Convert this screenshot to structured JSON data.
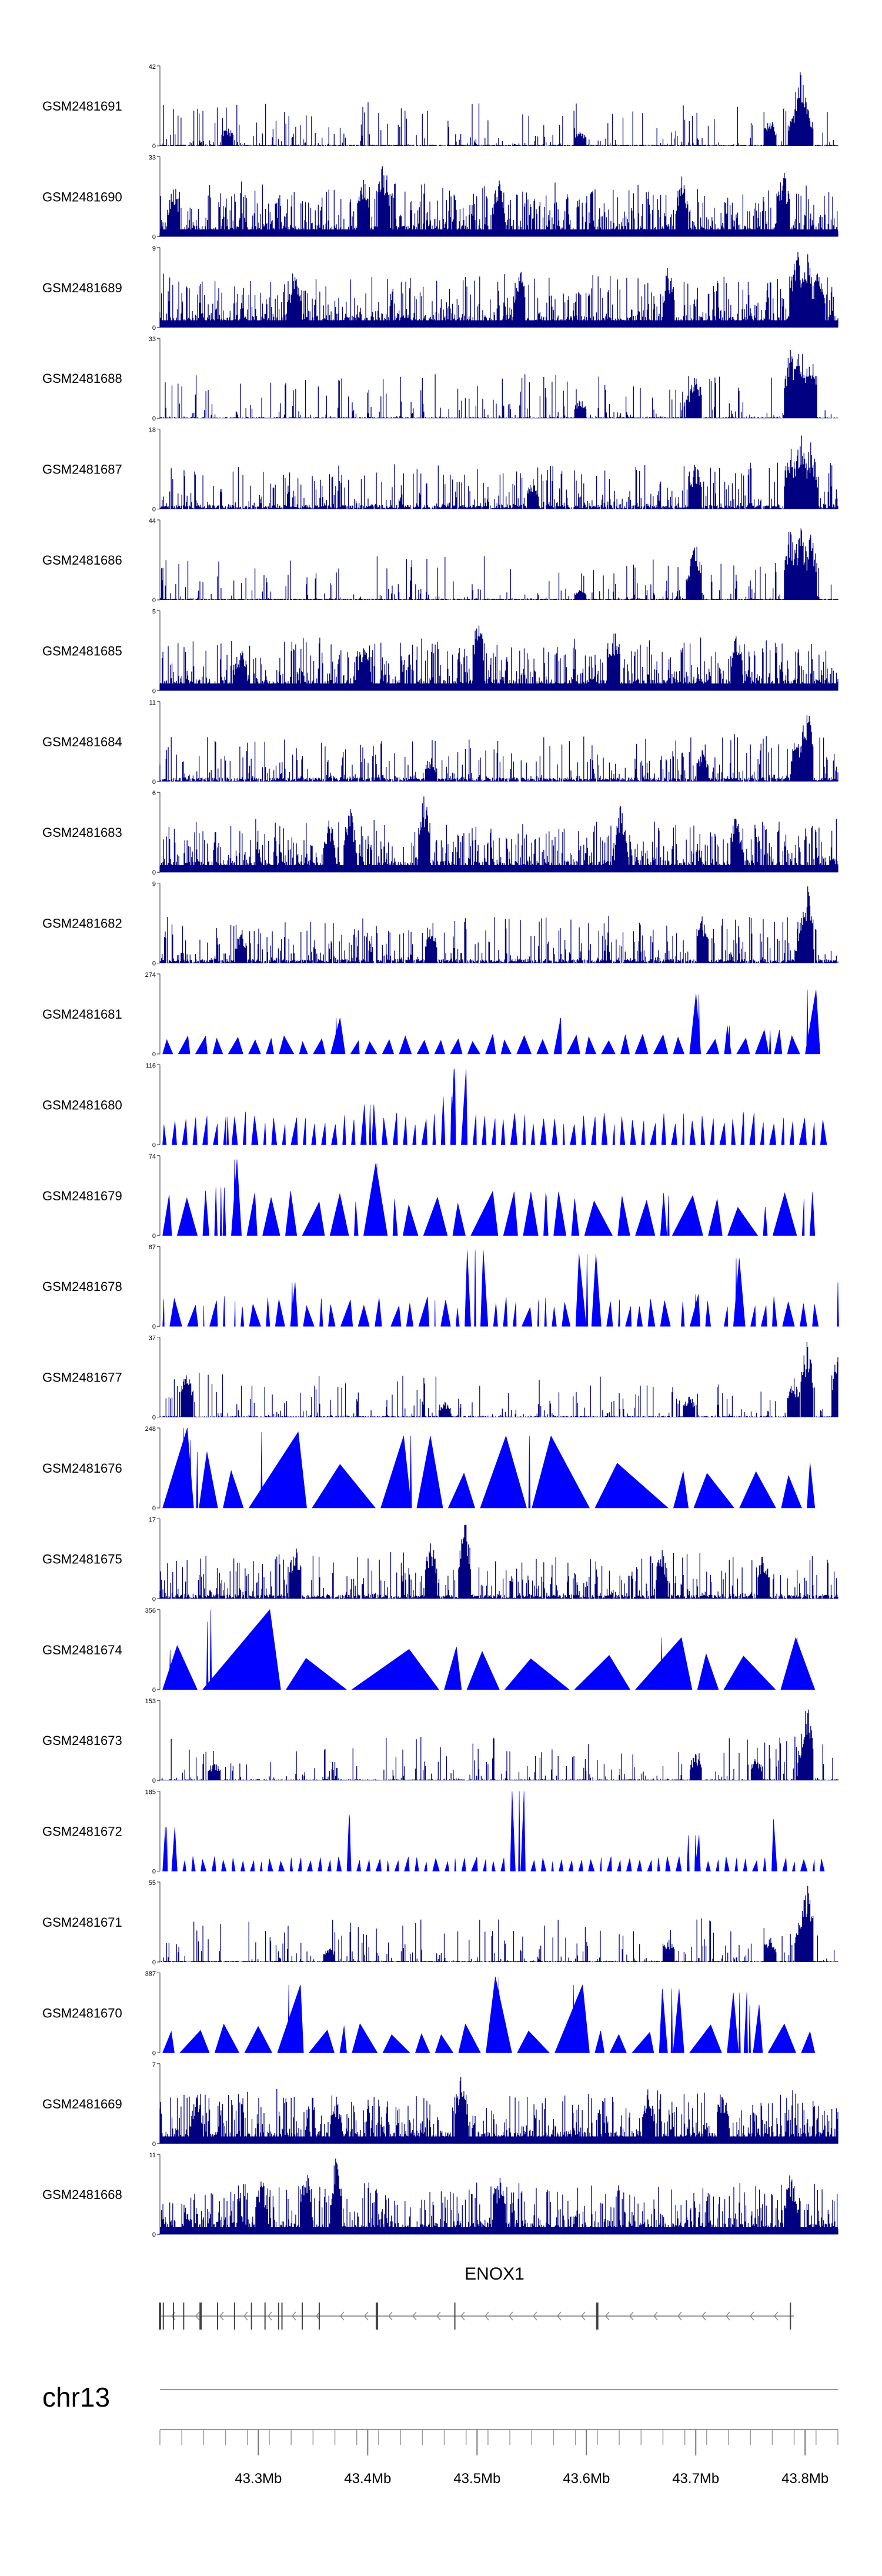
{
  "chart_data": {
    "type": "area",
    "track_color": "#0000ff",
    "bar_color": "#000080",
    "tracks": [
      {
        "name": "GSM2481691",
        "ymax": 42,
        "ymin": 0,
        "style": "bars",
        "density": "sparse",
        "peaks": [
          [
            0.945,
            1.0
          ],
          [
            0.935,
            0.45
          ],
          [
            0.955,
            0.55
          ],
          [
            0.9,
            0.35
          ],
          [
            0.62,
            0.2
          ],
          [
            0.1,
            0.25
          ]
        ]
      },
      {
        "name": "GSM2481690",
        "ymax": 33,
        "ymin": 0,
        "style": "bars",
        "density": "dense",
        "peaks": [
          [
            0.33,
            1.0
          ],
          [
            0.02,
            0.7
          ],
          [
            0.3,
            0.85
          ],
          [
            0.5,
            0.75
          ],
          [
            0.77,
            0.8
          ],
          [
            0.92,
            0.85
          ]
        ]
      },
      {
        "name": "GSM2481689",
        "ymax": 9,
        "ymin": 0,
        "style": "bars",
        "density": "dense",
        "peaks": [
          [
            0.94,
            1.0
          ],
          [
            0.955,
            0.95
          ],
          [
            0.97,
            0.85
          ],
          [
            0.75,
            0.8
          ],
          [
            0.53,
            0.8
          ],
          [
            0.2,
            0.7
          ]
        ]
      },
      {
        "name": "GSM2481688",
        "ymax": 33,
        "ymin": 0,
        "style": "bars",
        "density": "sparse",
        "peaks": [
          [
            0.93,
            0.95
          ],
          [
            0.945,
            1.0
          ],
          [
            0.96,
            0.9
          ],
          [
            0.79,
            0.6
          ],
          [
            0.785,
            0.45
          ],
          [
            0.62,
            0.25
          ]
        ]
      },
      {
        "name": "GSM2481687",
        "ymax": 18,
        "ymin": 0,
        "style": "bars",
        "density": "medium",
        "peaks": [
          [
            0.93,
            0.8
          ],
          [
            0.945,
            1.0
          ],
          [
            0.96,
            0.85
          ],
          [
            0.79,
            0.6
          ],
          [
            0.55,
            0.4
          ]
        ]
      },
      {
        "name": "GSM2481686",
        "ymax": 44,
        "ymin": 0,
        "style": "bars",
        "density": "sparse",
        "peaks": [
          [
            0.93,
            0.95
          ],
          [
            0.945,
            1.0
          ],
          [
            0.96,
            0.85
          ],
          [
            0.79,
            0.75
          ],
          [
            0.785,
            0.55
          ],
          [
            0.62,
            0.15
          ]
        ]
      },
      {
        "name": "GSM2481685",
        "ymax": 5,
        "ymin": 0,
        "style": "bars",
        "density": "dense",
        "peaks": [
          [
            0.47,
            1.0
          ],
          [
            0.67,
            0.8
          ],
          [
            0.85,
            0.75
          ],
          [
            0.3,
            0.7
          ],
          [
            0.12,
            0.6
          ]
        ]
      },
      {
        "name": "GSM2481684",
        "ymax": 11,
        "ymin": 0,
        "style": "bars",
        "density": "medium",
        "peaks": [
          [
            0.955,
            1.0
          ],
          [
            0.95,
            0.75
          ],
          [
            0.94,
            0.6
          ],
          [
            0.8,
            0.4
          ],
          [
            0.4,
            0.3
          ]
        ]
      },
      {
        "name": "GSM2481683",
        "ymax": 6,
        "ymin": 0,
        "style": "bars",
        "density": "dense",
        "peaks": [
          [
            0.39,
            1.0
          ],
          [
            0.68,
            0.95
          ],
          [
            0.28,
            0.85
          ],
          [
            0.25,
            0.7
          ],
          [
            0.85,
            0.75
          ]
        ]
      },
      {
        "name": "GSM2481682",
        "ymax": 9,
        "ymin": 0,
        "style": "bars",
        "density": "medium",
        "peaks": [
          [
            0.955,
            1.0
          ],
          [
            0.95,
            0.7
          ],
          [
            0.8,
            0.6
          ],
          [
            0.4,
            0.5
          ],
          [
            0.12,
            0.45
          ]
        ]
      },
      {
        "name": "GSM2481681",
        "ymax": 274,
        "ymin": 0,
        "style": "tri",
        "mode": "even",
        "n": 40,
        "base": 0.2,
        "seed": 11,
        "peaks": [
          [
            0.795,
            0.75
          ],
          [
            0.955,
            0.8
          ],
          [
            0.26,
            0.45
          ],
          [
            0.59,
            0.45
          ],
          [
            0.84,
            0.35
          ],
          [
            0.9,
            0.3
          ]
        ]
      },
      {
        "name": "GSM2481680",
        "ymax": 116,
        "ymin": 0,
        "style": "tri",
        "mode": "even",
        "n": 68,
        "base": 0.33,
        "seed": 23,
        "peaks": [
          [
            0.435,
            0.95
          ],
          [
            0.43,
            0.6
          ],
          [
            0.31,
            0.5
          ],
          [
            0.86,
            0.4
          ],
          [
            0.1,
            0.35
          ]
        ]
      },
      {
        "name": "GSM2481679",
        "ymax": 74,
        "ymin": 0,
        "style": "tri",
        "mode": "random",
        "n": 34,
        "base": 0.45,
        "seed": 37,
        "peaks": [
          [
            0.11,
            0.95
          ],
          [
            0.32,
            0.9
          ],
          [
            0.09,
            0.6
          ],
          [
            0.57,
            0.5
          ],
          [
            0.75,
            0.5
          ]
        ]
      },
      {
        "name": "GSM2481678",
        "ymax": 87,
        "ymin": 0,
        "style": "tri",
        "mode": "random",
        "n": 60,
        "base": 0.3,
        "seed": 41,
        "peaks": [
          [
            0.465,
            0.95
          ],
          [
            0.63,
            0.9
          ],
          [
            0.85,
            0.85
          ],
          [
            0.195,
            0.55
          ],
          [
            0.79,
            0.4
          ],
          [
            1.0,
            0.55
          ]
        ]
      },
      {
        "name": "GSM2481677",
        "ymax": 37,
        "ymin": 0,
        "style": "bars",
        "density": "sparse",
        "peaks": [
          [
            0.955,
            1.0
          ],
          [
            0.935,
            0.5
          ],
          [
            1.0,
            0.9
          ],
          [
            0.04,
            0.65
          ],
          [
            0.78,
            0.3
          ],
          [
            0.42,
            0.2
          ]
        ]
      },
      {
        "name": "GSM2481676",
        "ymax": 248,
        "ymin": 0,
        "style": "tri",
        "mode": "random",
        "n": 16,
        "base": 0.5,
        "seed": 53,
        "peaks": [
          [
            0.035,
            1.0
          ],
          [
            0.045,
            0.85
          ],
          [
            0.37,
            0.9
          ],
          [
            0.15,
            0.95
          ],
          [
            0.055,
            0.7
          ],
          [
            0.545,
            0.9
          ]
        ]
      },
      {
        "name": "GSM2481675",
        "ymax": 17,
        "ymin": 0,
        "style": "bars",
        "density": "medium",
        "peaks": [
          [
            0.45,
            1.0
          ],
          [
            0.2,
            0.7
          ],
          [
            0.4,
            0.75
          ],
          [
            0.74,
            0.65
          ],
          [
            0.89,
            0.6
          ]
        ]
      },
      {
        "name": "GSM2481674",
        "ymax": 356,
        "ymin": 0,
        "style": "tri",
        "mode": "random",
        "n": 12,
        "base": 0.45,
        "seed": 61,
        "peaks": [
          [
            0.075,
            1.0
          ],
          [
            0.07,
            0.85
          ],
          [
            0.015,
            0.5
          ],
          [
            0.74,
            0.65
          ],
          [
            0.94,
            0.65
          ]
        ]
      },
      {
        "name": "GSM2481673",
        "ymax": 153,
        "ymin": 0,
        "style": "bars",
        "density": "sparse",
        "peaks": [
          [
            0.955,
            1.0
          ],
          [
            0.95,
            0.65
          ],
          [
            0.79,
            0.35
          ],
          [
            0.88,
            0.3
          ],
          [
            0.08,
            0.25
          ]
        ]
      },
      {
        "name": "GSM2481672",
        "ymax": 185,
        "ymin": 0,
        "style": "tri",
        "mode": "even",
        "n": 70,
        "base": 0.15,
        "seed": 71,
        "peaks": [
          [
            0.53,
            1.0
          ],
          [
            0.28,
            0.7
          ],
          [
            0.905,
            0.65
          ],
          [
            0.01,
            0.55
          ],
          [
            0.79,
            0.45
          ]
        ]
      },
      {
        "name": "GSM2481671",
        "ymax": 55,
        "ymin": 0,
        "style": "bars",
        "density": "sparse",
        "peaks": [
          [
            0.955,
            1.0
          ],
          [
            0.945,
            0.65
          ],
          [
            0.9,
            0.35
          ],
          [
            0.75,
            0.3
          ],
          [
            0.25,
            0.2
          ]
        ]
      },
      {
        "name": "GSM2481670",
        "ymax": 387,
        "ymin": 0,
        "style": "tri",
        "mode": "random",
        "n": 26,
        "base": 0.3,
        "seed": 83,
        "peaks": [
          [
            0.5,
            0.95
          ],
          [
            0.19,
            0.85
          ],
          [
            0.61,
            0.85
          ],
          [
            0.755,
            0.8
          ],
          [
            0.855,
            0.75
          ],
          [
            0.87,
            0.6
          ]
        ]
      },
      {
        "name": "GSM2481669",
        "ymax": 7,
        "ymin": 0,
        "style": "bars",
        "density": "dense",
        "peaks": [
          [
            0.445,
            1.0
          ],
          [
            0.83,
            0.75
          ],
          [
            0.72,
            0.7
          ],
          [
            0.26,
            0.6
          ],
          [
            0.055,
            0.65
          ]
        ]
      },
      {
        "name": "GSM2481668",
        "ymax": 11,
        "ymin": 0,
        "style": "bars",
        "density": "dense",
        "peaks": [
          [
            0.26,
            1.0
          ],
          [
            0.215,
            0.95
          ],
          [
            0.93,
            0.85
          ],
          [
            0.5,
            0.8
          ],
          [
            0.15,
            0.75
          ]
        ]
      }
    ],
    "gene": {
      "name": "ENOX1",
      "start_frac": 0.0,
      "end_frac": 0.935,
      "strand": "-",
      "exons_frac": [
        0.0,
        0.005,
        0.02,
        0.035,
        0.06,
        0.085,
        0.11,
        0.135,
        0.155,
        0.175,
        0.18,
        0.21,
        0.235,
        0.32,
        0.435,
        0.645,
        0.93
      ]
    },
    "axis": {
      "chromosome": "chr13",
      "range_mb": [
        43.21,
        43.83
      ],
      "major_ticks_mb": [
        43.3,
        43.4,
        43.5,
        43.6,
        43.7,
        43.8
      ],
      "tick_labels": [
        "43.3Mb",
        "43.4Mb",
        "43.5Mb",
        "43.6Mb",
        "43.7Mb",
        "43.8Mb"
      ],
      "minor_step_mb": 0.02
    }
  }
}
